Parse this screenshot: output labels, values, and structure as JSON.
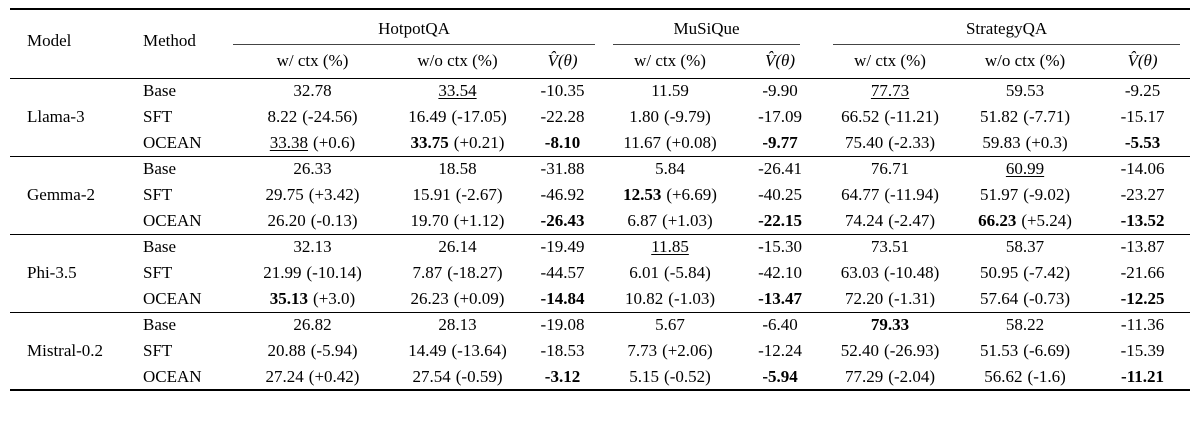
{
  "table": {
    "col_headers": {
      "model": "Model",
      "method": "Method",
      "groups": [
        {
          "label": "HotpotQA",
          "cols": [
            "w/ ctx (%)",
            "w/o ctx (%)",
            "V̂(θ)"
          ]
        },
        {
          "label": "MuSiQue",
          "cols": [
            "w/ ctx (%)",
            "V̂(θ)"
          ]
        },
        {
          "label": "StrategyQA",
          "cols": [
            "w/ ctx (%)",
            "w/o ctx (%)",
            "V̂(θ)"
          ]
        }
      ]
    },
    "body": [
      {
        "model": "Llama-3",
        "rows": [
          {
            "method": "Base",
            "cells": [
              {
                "v": "32.78"
              },
              {
                "v": "33.54",
                "s": "u"
              },
              {
                "v": "-10.35"
              },
              {
                "v": "11.59"
              },
              {
                "v": "-9.90"
              },
              {
                "v": "77.73",
                "s": "u"
              },
              {
                "v": "59.53"
              },
              {
                "v": "-9.25"
              }
            ]
          },
          {
            "method": "SFT",
            "cells": [
              {
                "v": "8.22",
                "d": "(-24.56)"
              },
              {
                "v": "16.49",
                "d": "(-17.05)"
              },
              {
                "v": "-22.28"
              },
              {
                "v": "1.80",
                "d": "(-9.79)"
              },
              {
                "v": "-17.09"
              },
              {
                "v": "66.52",
                "d": "(-11.21)"
              },
              {
                "v": "51.82",
                "d": "(-7.71)"
              },
              {
                "v": "-15.17"
              }
            ]
          },
          {
            "method": "OCEAN",
            "cells": [
              {
                "v": "33.38",
                "d": "(+0.6)",
                "s": "u"
              },
              {
                "v": "33.75",
                "d": "(+0.21)",
                "s": "b"
              },
              {
                "v": "-8.10",
                "s": "b"
              },
              {
                "v": "11.67",
                "d": "(+0.08)"
              },
              {
                "v": "-9.77",
                "s": "b"
              },
              {
                "v": "75.40",
                "d": "(-2.33)"
              },
              {
                "v": "59.83",
                "d": "(+0.3)"
              },
              {
                "v": "-5.53",
                "s": "b"
              }
            ]
          }
        ]
      },
      {
        "model": "Gemma-2",
        "rows": [
          {
            "method": "Base",
            "cells": [
              {
                "v": "26.33"
              },
              {
                "v": "18.58"
              },
              {
                "v": "-31.88"
              },
              {
                "v": "5.84"
              },
              {
                "v": "-26.41"
              },
              {
                "v": "76.71"
              },
              {
                "v": "60.99",
                "s": "u"
              },
              {
                "v": "-14.06"
              }
            ]
          },
          {
            "method": "SFT",
            "cells": [
              {
                "v": "29.75",
                "d": "(+3.42)"
              },
              {
                "v": "15.91",
                "d": "(-2.67)"
              },
              {
                "v": "-46.92"
              },
              {
                "v": "12.53",
                "d": "(+6.69)",
                "s": "b"
              },
              {
                "v": "-40.25"
              },
              {
                "v": "64.77",
                "d": "(-11.94)"
              },
              {
                "v": "51.97",
                "d": "(-9.02)"
              },
              {
                "v": "-23.27"
              }
            ]
          },
          {
            "method": "OCEAN",
            "cells": [
              {
                "v": "26.20",
                "d": "(-0.13)"
              },
              {
                "v": "19.70",
                "d": "(+1.12)"
              },
              {
                "v": "-26.43",
                "s": "b"
              },
              {
                "v": "6.87",
                "d": "(+1.03)"
              },
              {
                "v": "-22.15",
                "s": "b"
              },
              {
                "v": "74.24",
                "d": "(-2.47)"
              },
              {
                "v": "66.23",
                "d": "(+5.24)",
                "s": "b"
              },
              {
                "v": "-13.52",
                "s": "b"
              }
            ]
          }
        ]
      },
      {
        "model": "Phi-3.5",
        "rows": [
          {
            "method": "Base",
            "cells": [
              {
                "v": "32.13"
              },
              {
                "v": "26.14"
              },
              {
                "v": "-19.49"
              },
              {
                "v": "11.85",
                "s": "u"
              },
              {
                "v": "-15.30"
              },
              {
                "v": "73.51"
              },
              {
                "v": "58.37"
              },
              {
                "v": "-13.87"
              }
            ]
          },
          {
            "method": "SFT",
            "cells": [
              {
                "v": "21.99",
                "d": "(-10.14)"
              },
              {
                "v": "7.87",
                "d": "(-18.27)"
              },
              {
                "v": "-44.57"
              },
              {
                "v": "6.01",
                "d": "(-5.84)"
              },
              {
                "v": "-42.10"
              },
              {
                "v": "63.03",
                "d": "(-10.48)"
              },
              {
                "v": "50.95",
                "d": "(-7.42)"
              },
              {
                "v": "-21.66"
              }
            ]
          },
          {
            "method": "OCEAN",
            "cells": [
              {
                "v": "35.13",
                "d": "(+3.0)",
                "s": "b"
              },
              {
                "v": "26.23",
                "d": "(+0.09)"
              },
              {
                "v": "-14.84",
                "s": "b"
              },
              {
                "v": "10.82",
                "d": "(-1.03)"
              },
              {
                "v": "-13.47",
                "s": "b"
              },
              {
                "v": "72.20",
                "d": "(-1.31)"
              },
              {
                "v": "57.64",
                "d": "(-0.73)"
              },
              {
                "v": "-12.25",
                "s": "b"
              }
            ]
          }
        ]
      },
      {
        "model": "Mistral-0.2",
        "rows": [
          {
            "method": "Base",
            "cells": [
              {
                "v": "26.82"
              },
              {
                "v": "28.13"
              },
              {
                "v": "-19.08"
              },
              {
                "v": "5.67"
              },
              {
                "v": "-6.40"
              },
              {
                "v": "79.33",
                "s": "b"
              },
              {
                "v": "58.22"
              },
              {
                "v": "-11.36"
              }
            ]
          },
          {
            "method": "SFT",
            "cells": [
              {
                "v": "20.88",
                "d": "(-5.94)"
              },
              {
                "v": "14.49",
                "d": "(-13.64)"
              },
              {
                "v": "-18.53"
              },
              {
                "v": "7.73",
                "d": "(+2.06)"
              },
              {
                "v": "-12.24"
              },
              {
                "v": "52.40",
                "d": "(-26.93)"
              },
              {
                "v": "51.53",
                "d": "(-6.69)"
              },
              {
                "v": "-15.39"
              }
            ]
          },
          {
            "method": "OCEAN",
            "cells": [
              {
                "v": "27.24",
                "d": "(+0.42)"
              },
              {
                "v": "27.54",
                "d": "(-0.59)"
              },
              {
                "v": "-3.12",
                "s": "b"
              },
              {
                "v": "5.15",
                "d": "(-0.52)"
              },
              {
                "v": "-5.94",
                "s": "b"
              },
              {
                "v": "77.29",
                "d": "(-2.04)"
              },
              {
                "v": "56.62",
                "d": "(-1.6)"
              },
              {
                "v": "-11.21",
                "s": "b"
              }
            ]
          }
        ]
      }
    ]
  }
}
